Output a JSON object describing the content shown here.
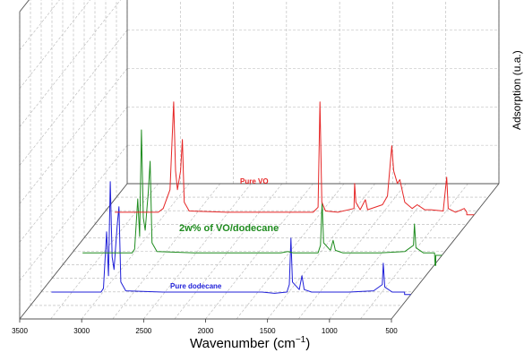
{
  "chart_data": {
    "type": "line",
    "title": "",
    "xlabel": "Wavenumber (cm",
    "xlabel_sup": "−1",
    "xlabel_end": ")",
    "ylabel": "Adsorption (u.a.)",
    "xlim": [
      3500,
      500
    ],
    "x_ticks": [
      "3500",
      "3000",
      "2500",
      "2000",
      "1500",
      "1000",
      "500"
    ],
    "grid": true,
    "projection": "3d-waterfall",
    "series": [
      {
        "name": "Pure dodecane",
        "color": "#1f1fd8",
        "points": [
          [
            3400,
            0.02
          ],
          [
            3000,
            0.02
          ],
          [
            2980,
            0.05
          ],
          [
            2955,
            0.5
          ],
          [
            2940,
            0.15
          ],
          [
            2925,
            0.9
          ],
          [
            2910,
            0.3
          ],
          [
            2895,
            0.2
          ],
          [
            2870,
            0.55
          ],
          [
            2855,
            0.7
          ],
          [
            2840,
            0.1
          ],
          [
            2800,
            0.03
          ],
          [
            2500,
            0.02
          ],
          [
            2000,
            0.02
          ],
          [
            1700,
            0.02
          ],
          [
            1600,
            0.01
          ],
          [
            1500,
            0.02
          ],
          [
            1480,
            0.08
          ],
          [
            1467,
            0.45
          ],
          [
            1455,
            0.1
          ],
          [
            1400,
            0.04
          ],
          [
            1378,
            0.15
          ],
          [
            1360,
            0.04
          ],
          [
            1300,
            0.02
          ],
          [
            1000,
            0.02
          ],
          [
            800,
            0.03
          ],
          [
            730,
            0.08
          ],
          [
            722,
            0.25
          ],
          [
            710,
            0.06
          ],
          [
            650,
            0.02
          ],
          [
            550,
            0.02
          ]
        ]
      },
      {
        "name": "2w% of VO/dodecane",
        "color": "#1f8c1f",
        "points": [
          [
            3400,
            0.02
          ],
          [
            3000,
            0.02
          ],
          [
            2980,
            0.05
          ],
          [
            2955,
            0.45
          ],
          [
            2940,
            0.15
          ],
          [
            2925,
            1.0
          ],
          [
            2910,
            0.3
          ],
          [
            2895,
            0.2
          ],
          [
            2870,
            0.5
          ],
          [
            2855,
            0.75
          ],
          [
            2840,
            0.1
          ],
          [
            2800,
            0.03
          ],
          [
            2500,
            0.02
          ],
          [
            2000,
            0.02
          ],
          [
            1800,
            0.02
          ],
          [
            1745,
            0.03
          ],
          [
            1700,
            0.02
          ],
          [
            1500,
            0.02
          ],
          [
            1480,
            0.08
          ],
          [
            1467,
            0.42
          ],
          [
            1455,
            0.1
          ],
          [
            1400,
            0.04
          ],
          [
            1378,
            0.12
          ],
          [
            1360,
            0.04
          ],
          [
            1300,
            0.02
          ],
          [
            1000,
            0.02
          ],
          [
            800,
            0.03
          ],
          [
            730,
            0.08
          ],
          [
            722,
            0.25
          ],
          [
            710,
            0.06
          ],
          [
            650,
            0.02
          ],
          [
            560,
            0.02
          ],
          [
            555,
            -0.08
          ],
          [
            550,
            -0.08
          ]
        ]
      },
      {
        "name": "Pure VO",
        "color": "#e62626",
        "points": [
          [
            3400,
            0.02
          ],
          [
            3050,
            0.02
          ],
          [
            3010,
            0.05
          ],
          [
            2955,
            0.2
          ],
          [
            2925,
            0.9
          ],
          [
            2910,
            0.35
          ],
          [
            2895,
            0.2
          ],
          [
            2870,
            0.35
          ],
          [
            2855,
            0.6
          ],
          [
            2840,
            0.1
          ],
          [
            2800,
            0.03
          ],
          [
            2500,
            0.02
          ],
          [
            2000,
            0.02
          ],
          [
            1800,
            0.02
          ],
          [
            1760,
            0.06
          ],
          [
            1745,
            0.9
          ],
          [
            1730,
            0.1
          ],
          [
            1700,
            0.03
          ],
          [
            1600,
            0.02
          ],
          [
            1470,
            0.05
          ],
          [
            1465,
            0.25
          ],
          [
            1455,
            0.1
          ],
          [
            1420,
            0.04
          ],
          [
            1378,
            0.12
          ],
          [
            1360,
            0.04
          ],
          [
            1240,
            0.08
          ],
          [
            1200,
            0.15
          ],
          [
            1165,
            0.55
          ],
          [
            1150,
            0.35
          ],
          [
            1120,
            0.25
          ],
          [
            1100,
            0.28
          ],
          [
            1060,
            0.1
          ],
          [
            1000,
            0.05
          ],
          [
            960,
            0.08
          ],
          [
            900,
            0.04
          ],
          [
            850,
            0.04
          ],
          [
            750,
            0.03
          ],
          [
            722,
            0.3
          ],
          [
            710,
            0.05
          ],
          [
            650,
            0.02
          ],
          [
            580,
            0.05
          ],
          [
            560,
            0.02
          ]
        ]
      }
    ]
  }
}
